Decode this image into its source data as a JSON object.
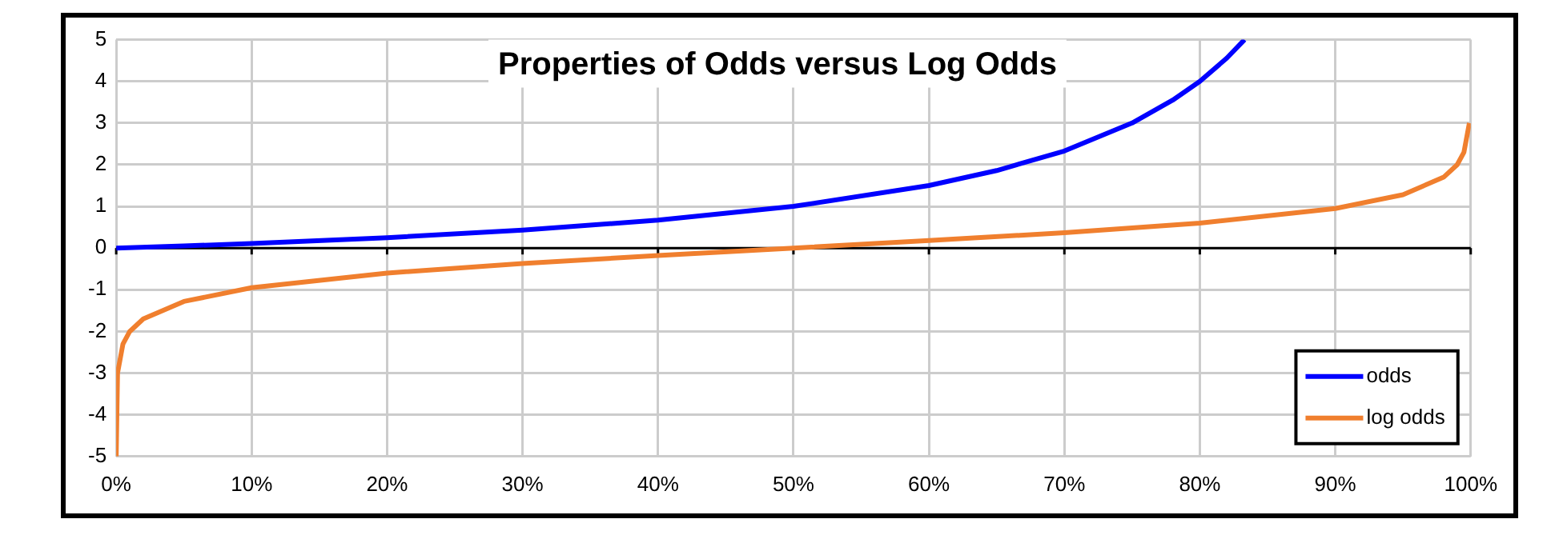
{
  "chart_data": {
    "type": "line",
    "title": "Properties of Odds versus Log Odds",
    "series": [
      {
        "name": "odds",
        "color": "#0000ff",
        "x": [
          0,
          5,
          10,
          20,
          30,
          40,
          50,
          60,
          65,
          70,
          75,
          78,
          80,
          82,
          83.3
        ],
        "values": [
          0,
          0.05,
          0.11,
          0.25,
          0.43,
          0.67,
          1,
          1.5,
          1.86,
          2.33,
          3,
          3.55,
          4,
          4.56,
          5
        ]
      },
      {
        "name": "log odds",
        "color": "#f07f2e",
        "x": [
          0,
          0.1,
          0.5,
          1,
          2,
          5,
          10,
          20,
          30,
          40,
          50,
          60,
          70,
          80,
          90,
          95,
          98,
          99,
          99.5,
          99.9
        ],
        "values": [
          -5,
          -3,
          -2.3,
          -2,
          -1.7,
          -1.28,
          -0.95,
          -0.6,
          -0.37,
          -0.18,
          0,
          0.18,
          0.37,
          0.6,
          0.95,
          1.28,
          1.7,
          2,
          2.3,
          3
        ]
      }
    ],
    "xlim": [
      0,
      100
    ],
    "xticks": [
      {
        "value": 0,
        "label": "0%"
      },
      {
        "value": 10,
        "label": "10%"
      },
      {
        "value": 20,
        "label": "20%"
      },
      {
        "value": 30,
        "label": "30%"
      },
      {
        "value": 40,
        "label": "40%"
      },
      {
        "value": 50,
        "label": "50%"
      },
      {
        "value": 60,
        "label": "60%"
      },
      {
        "value": 70,
        "label": "70%"
      },
      {
        "value": 80,
        "label": "80%"
      },
      {
        "value": 90,
        "label": "90%"
      },
      {
        "value": 100,
        "label": "100%"
      }
    ],
    "ylim": [
      -5,
      5
    ],
    "yticks": [
      -5,
      -4,
      -3,
      -2,
      -1,
      0,
      1,
      2,
      3,
      4,
      5
    ],
    "grid": true,
    "legend": "bottom right",
    "marker": "none",
    "line_style": "solid"
  }
}
